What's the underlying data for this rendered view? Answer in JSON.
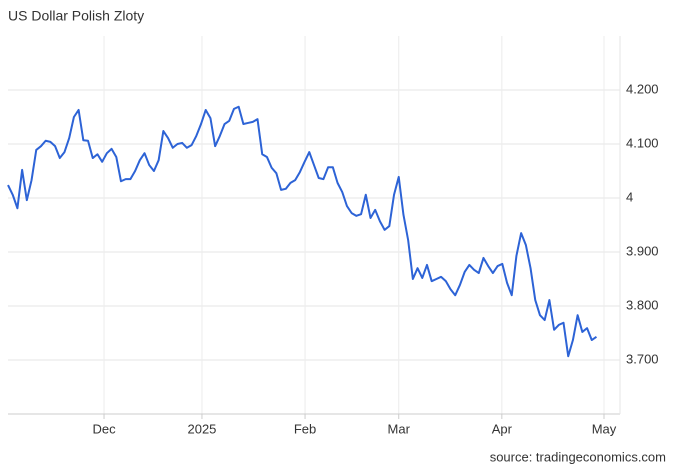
{
  "chart_data": {
    "type": "line",
    "title": "US Dollar Polish Zloty",
    "source": "source: tradingeconomics.com",
    "color": "#2d63d6",
    "grid": true,
    "values": [
      4.024,
      4.006,
      3.981,
      4.052,
      3.996,
      4.033,
      4.089,
      4.096,
      4.106,
      4.104,
      4.096,
      4.074,
      4.085,
      4.111,
      4.15,
      4.163,
      4.107,
      4.106,
      4.074,
      4.081,
      4.067,
      4.083,
      4.091,
      4.076,
      4.031,
      4.035,
      4.035,
      4.05,
      4.07,
      4.083,
      4.061,
      4.05,
      4.07,
      4.124,
      4.111,
      4.093,
      4.1,
      4.102,
      4.093,
      4.098,
      4.115,
      4.137,
      4.163,
      4.148,
      4.096,
      4.115,
      4.137,
      4.143,
      4.165,
      4.169,
      4.137,
      4.139,
      4.141,
      4.146,
      4.081,
      4.076,
      4.056,
      4.046,
      4.015,
      4.017,
      4.028,
      4.033,
      4.048,
      4.067,
      4.085,
      4.061,
      4.037,
      4.035,
      4.057,
      4.057,
      4.028,
      4.011,
      3.985,
      3.972,
      3.967,
      3.97,
      4.006,
      3.963,
      3.978,
      3.957,
      3.941,
      3.948,
      4.006,
      4.039,
      3.969,
      3.922,
      3.85,
      3.87,
      3.852,
      3.876,
      3.846,
      3.85,
      3.854,
      3.846,
      3.831,
      3.82,
      3.839,
      3.863,
      3.876,
      3.867,
      3.861,
      3.889,
      3.874,
      3.861,
      3.874,
      3.878,
      3.843,
      3.82,
      3.893,
      3.935,
      3.913,
      3.87,
      3.811,
      3.783,
      3.774,
      3.811,
      3.756,
      3.765,
      3.769,
      3.707,
      3.737,
      3.783,
      3.752,
      3.759,
      3.737,
      3.743
    ],
    "xlim": [
      0,
      130
    ],
    "xticks": [
      {
        "value": 20.4,
        "label": "Dec"
      },
      {
        "value": 41.2,
        "label": "2025"
      },
      {
        "value": 63.1,
        "label": "Feb"
      },
      {
        "value": 83.0,
        "label": "Mar"
      },
      {
        "value": 104.9,
        "label": "Apr"
      },
      {
        "value": 126.6,
        "label": "May"
      }
    ],
    "ylim": [
      3.6,
      4.3
    ],
    "yticks": [
      {
        "value": 3.7,
        "label": "3.700"
      },
      {
        "value": 3.8,
        "label": "3.800"
      },
      {
        "value": 3.9,
        "label": "3.900"
      },
      4,
      {
        "value": 4.1,
        "label": "4.100"
      },
      {
        "value": 4.2,
        "label": "4.200"
      }
    ]
  }
}
